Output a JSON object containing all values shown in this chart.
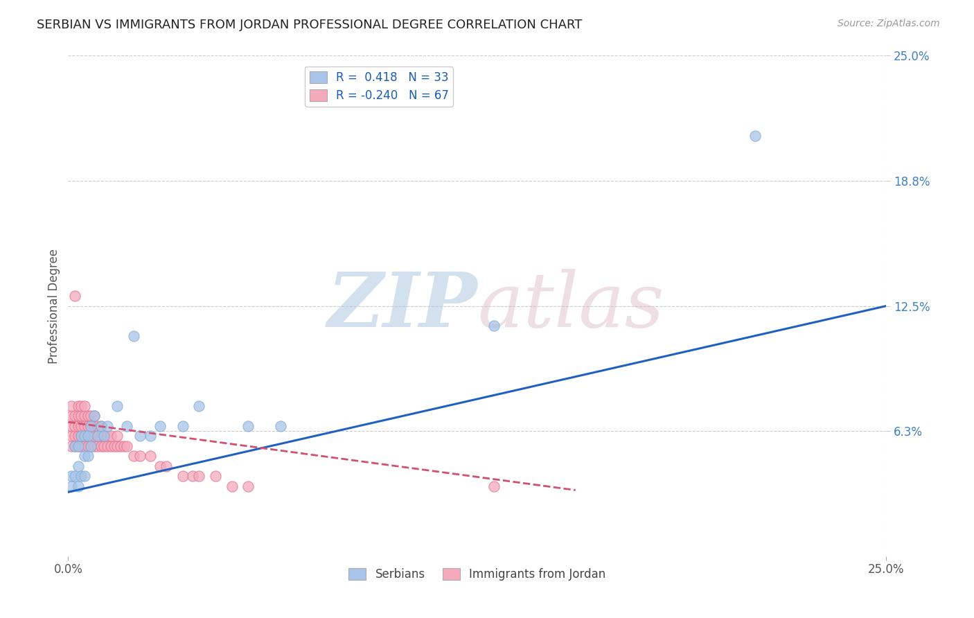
{
  "title": "SERBIAN VS IMMIGRANTS FROM JORDAN PROFESSIONAL DEGREE CORRELATION CHART",
  "source_text": "Source: ZipAtlas.com",
  "ylabel": "Professional Degree",
  "xlim": [
    0.0,
    0.25
  ],
  "ylim": [
    0.0,
    0.25
  ],
  "xtick_labels": [
    "0.0%",
    "25.0%"
  ],
  "xtick_vals": [
    0.0,
    0.25
  ],
  "ytick_labels": [
    "6.3%",
    "12.5%",
    "18.8%",
    "25.0%"
  ],
  "ytick_vals": [
    0.0625,
    0.125,
    0.1875,
    0.25
  ],
  "series1_name": "Serbians",
  "series1_R": 0.418,
  "series1_N": 33,
  "series1_color": "#a8c4e8",
  "series1_edge_color": "#7aaad8",
  "series1_line_color": "#2060c0",
  "series2_name": "Immigrants from Jordan",
  "series2_R": -0.24,
  "series2_N": 67,
  "series2_color": "#f5aabb",
  "series2_edge_color": "#e07090",
  "series2_line_color": "#d05070",
  "background_color": "#ffffff",
  "grid_color": "#cccccc",
  "legend_R_color": "#1a5cb0",
  "title_fontsize": 13,
  "series1_x": [
    0.001,
    0.001,
    0.002,
    0.002,
    0.003,
    0.003,
    0.003,
    0.004,
    0.004,
    0.005,
    0.005,
    0.005,
    0.006,
    0.006,
    0.007,
    0.007,
    0.008,
    0.009,
    0.01,
    0.011,
    0.012,
    0.015,
    0.018,
    0.02,
    0.022,
    0.025,
    0.028,
    0.035,
    0.04,
    0.055,
    0.065,
    0.13,
    0.21
  ],
  "series1_y": [
    0.035,
    0.04,
    0.04,
    0.055,
    0.035,
    0.045,
    0.055,
    0.04,
    0.06,
    0.04,
    0.05,
    0.06,
    0.05,
    0.06,
    0.055,
    0.065,
    0.07,
    0.06,
    0.065,
    0.06,
    0.065,
    0.075,
    0.065,
    0.11,
    0.06,
    0.06,
    0.065,
    0.065,
    0.075,
    0.065,
    0.065,
    0.115,
    0.21
  ],
  "series2_x": [
    0.001,
    0.001,
    0.001,
    0.001,
    0.001,
    0.002,
    0.002,
    0.002,
    0.002,
    0.002,
    0.003,
    0.003,
    0.003,
    0.003,
    0.003,
    0.004,
    0.004,
    0.004,
    0.004,
    0.004,
    0.005,
    0.005,
    0.005,
    0.005,
    0.005,
    0.006,
    0.006,
    0.006,
    0.006,
    0.007,
    0.007,
    0.007,
    0.007,
    0.008,
    0.008,
    0.008,
    0.008,
    0.009,
    0.009,
    0.009,
    0.01,
    0.01,
    0.01,
    0.011,
    0.011,
    0.012,
    0.012,
    0.013,
    0.013,
    0.014,
    0.015,
    0.015,
    0.016,
    0.017,
    0.018,
    0.02,
    0.022,
    0.025,
    0.028,
    0.03,
    0.035,
    0.038,
    0.04,
    0.045,
    0.05,
    0.055,
    0.13
  ],
  "series2_y": [
    0.055,
    0.06,
    0.065,
    0.07,
    0.075,
    0.055,
    0.06,
    0.065,
    0.07,
    0.13,
    0.055,
    0.06,
    0.065,
    0.07,
    0.075,
    0.055,
    0.06,
    0.065,
    0.07,
    0.075,
    0.055,
    0.06,
    0.065,
    0.07,
    0.075,
    0.055,
    0.06,
    0.065,
    0.07,
    0.055,
    0.06,
    0.065,
    0.07,
    0.055,
    0.06,
    0.065,
    0.07,
    0.055,
    0.06,
    0.065,
    0.055,
    0.06,
    0.065,
    0.055,
    0.06,
    0.055,
    0.06,
    0.055,
    0.06,
    0.055,
    0.055,
    0.06,
    0.055,
    0.055,
    0.055,
    0.05,
    0.05,
    0.05,
    0.045,
    0.045,
    0.04,
    0.04,
    0.04,
    0.04,
    0.035,
    0.035,
    0.035
  ],
  "blue_line_x0": 0.0,
  "blue_line_y0": 0.032,
  "blue_line_x1": 0.25,
  "blue_line_y1": 0.125,
  "pink_line_x0": 0.0,
  "pink_line_y0": 0.067,
  "pink_line_x1": 0.155,
  "pink_line_y1": 0.033
}
